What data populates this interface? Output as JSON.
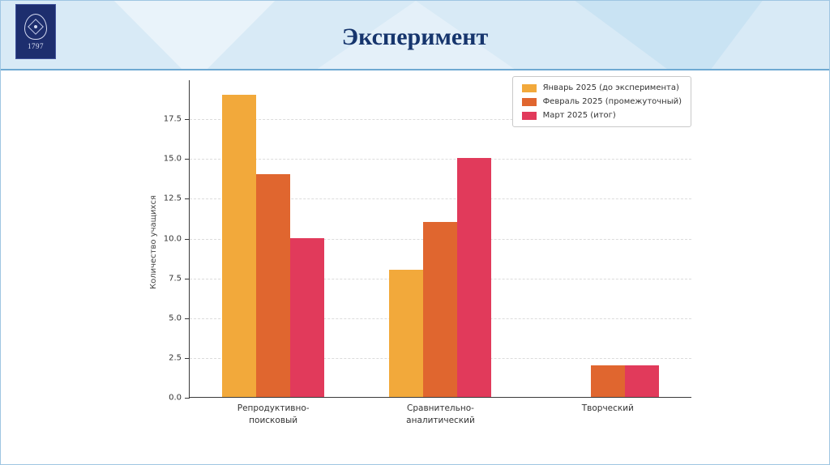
{
  "header": {
    "title": "Эксперимент",
    "logo_year": "1797"
  },
  "chart_data": {
    "type": "bar",
    "title": "",
    "xlabel": "",
    "ylabel": "Количество учащихся",
    "categories": [
      "Репродуктивно-\nпоисковый",
      "Сравнительно-\nаналитический",
      "Творческий"
    ],
    "series": [
      {
        "name": "Январь 2025 (до эксперимента)",
        "color": "#F2A93B",
        "values": [
          19,
          8,
          0
        ]
      },
      {
        "name": "Февраль 2025 (промежуточный)",
        "color": "#E0662F",
        "values": [
          14,
          11,
          2
        ]
      },
      {
        "name": "Март 2025 (итог)",
        "color": "#E13A5B",
        "values": [
          10,
          15,
          2
        ]
      }
    ],
    "yticks": [
      0,
      2.5,
      5,
      7.5,
      10,
      12.5,
      15,
      17.5
    ],
    "ylim": [
      0,
      19.95
    ],
    "grid": true,
    "grid_style": "dashed",
    "legend_position": "upper-right"
  }
}
